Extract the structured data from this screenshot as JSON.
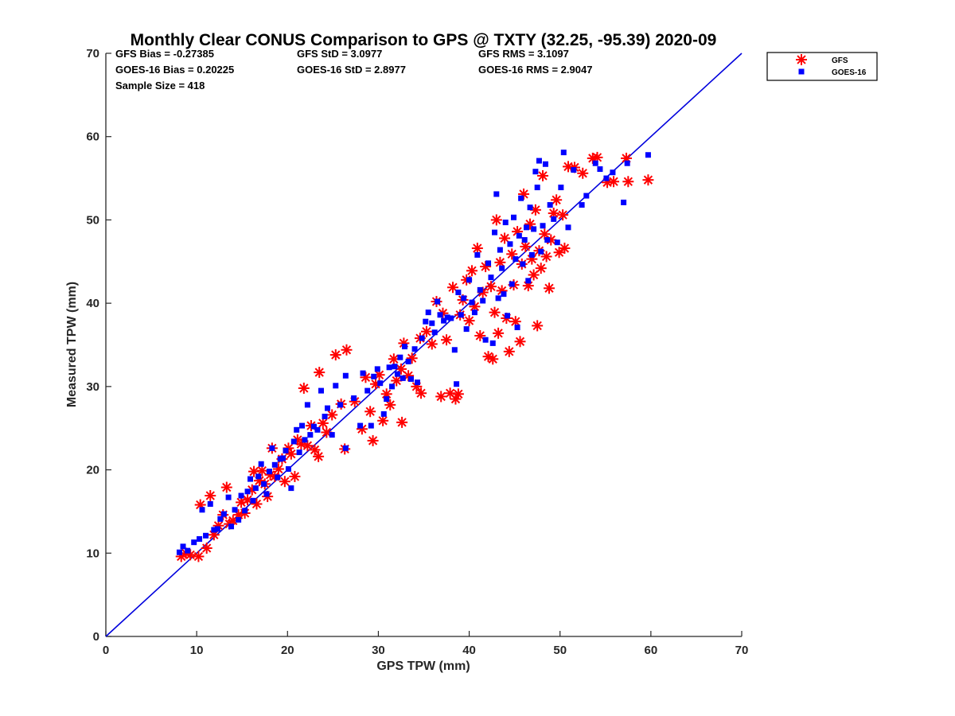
{
  "chart_data": {
    "type": "scatter",
    "title": "Monthly Clear CONUS Comparison to GPS @ TXTY (32.25, -95.39) 2020-09",
    "xlabel": "GPS TPW (mm)",
    "ylabel": "Measured TPW (mm)",
    "xlim": [
      0,
      70
    ],
    "ylim": [
      0,
      70
    ],
    "xticks": [
      "0",
      "10",
      "20",
      "30",
      "40",
      "50",
      "60",
      "70"
    ],
    "yticks": [
      "0",
      "10",
      "20",
      "30",
      "40",
      "50",
      "60",
      "70"
    ],
    "grid": false,
    "legend_position": "outside-top-right",
    "stats": {
      "gfs_bias": "GFS Bias = -0.27385",
      "goes_bias": "GOES-16 Bias = 0.20225",
      "sample_size": "Sample Size = 418",
      "gfs_std": "GFS StD = 3.0977",
      "goes_std": "GOES-16 StD = 2.8977",
      "gfs_rms": "GFS RMS = 3.1097",
      "goes_rms": "GOES-16 RMS = 2.9047"
    },
    "reference_line": {
      "x": [
        0,
        70
      ],
      "y": [
        0,
        70
      ],
      "color": "#0000dd"
    },
    "series": [
      {
        "name": "GFS",
        "marker": "asterisk",
        "color": "#ff0000",
        "points": [
          [
            8.3,
            9.6
          ],
          [
            8.8,
            10.0
          ],
          [
            9.3,
            9.8
          ],
          [
            10.2,
            9.6
          ],
          [
            10.4,
            15.8
          ],
          [
            11.1,
            10.6
          ],
          [
            11.5,
            16.9
          ],
          [
            11.9,
            12.2
          ],
          [
            12.4,
            13.3
          ],
          [
            12.9,
            14.6
          ],
          [
            13.3,
            17.9
          ],
          [
            13.6,
            13.5
          ],
          [
            14.0,
            13.9
          ],
          [
            14.6,
            14.6
          ],
          [
            14.9,
            16.1
          ],
          [
            15.3,
            14.8
          ],
          [
            15.6,
            16.4
          ],
          [
            16.1,
            17.6
          ],
          [
            16.3,
            19.8
          ],
          [
            16.6,
            15.9
          ],
          [
            16.9,
            18.7
          ],
          [
            17.2,
            19.9
          ],
          [
            17.5,
            18.3
          ],
          [
            17.8,
            16.8
          ],
          [
            18.1,
            19.4
          ],
          [
            18.3,
            22.6
          ],
          [
            18.6,
            19.2
          ],
          [
            19.0,
            20.1
          ],
          [
            19.4,
            21.3
          ],
          [
            19.7,
            18.6
          ],
          [
            20.1,
            22.6
          ],
          [
            20.4,
            21.9
          ],
          [
            20.8,
            19.2
          ],
          [
            21.1,
            23.6
          ],
          [
            21.5,
            23.1
          ],
          [
            21.8,
            29.8
          ],
          [
            22.2,
            22.9
          ],
          [
            22.6,
            25.3
          ],
          [
            23.0,
            22.4
          ],
          [
            23.4,
            21.6
          ],
          [
            23.5,
            31.7
          ],
          [
            23.9,
            25.6
          ],
          [
            24.3,
            24.5
          ],
          [
            24.9,
            26.6
          ],
          [
            25.3,
            33.8
          ],
          [
            25.9,
            27.9
          ],
          [
            26.3,
            22.5
          ],
          [
            26.5,
            34.4
          ],
          [
            27.4,
            28.2
          ],
          [
            28.2,
            24.9
          ],
          [
            28.6,
            31.1
          ],
          [
            29.1,
            27.0
          ],
          [
            29.4,
            23.5
          ],
          [
            29.7,
            30.3
          ],
          [
            30.1,
            31.4
          ],
          [
            30.5,
            25.9
          ],
          [
            30.9,
            29.1
          ],
          [
            31.3,
            27.8
          ],
          [
            31.7,
            33.3
          ],
          [
            32.0,
            30.7
          ],
          [
            32.5,
            32.1
          ],
          [
            32.6,
            25.7
          ],
          [
            32.8,
            35.2
          ],
          [
            33.3,
            31.3
          ],
          [
            33.7,
            33.4
          ],
          [
            34.2,
            30.0
          ],
          [
            34.6,
            35.8
          ],
          [
            34.7,
            29.2
          ],
          [
            35.3,
            36.6
          ],
          [
            35.9,
            35.1
          ],
          [
            36.4,
            40.2
          ],
          [
            36.9,
            28.8
          ],
          [
            37.1,
            38.8
          ],
          [
            37.5,
            35.6
          ],
          [
            37.9,
            29.2
          ],
          [
            38.2,
            41.9
          ],
          [
            38.5,
            28.5
          ],
          [
            38.8,
            29.1
          ],
          [
            39.0,
            38.6
          ],
          [
            39.3,
            40.4
          ],
          [
            39.7,
            42.8
          ],
          [
            40.0,
            37.9
          ],
          [
            40.3,
            43.9
          ],
          [
            40.6,
            39.6
          ],
          [
            40.9,
            46.6
          ],
          [
            41.2,
            36.1
          ],
          [
            41.5,
            41.3
          ],
          [
            41.8,
            44.4
          ],
          [
            42.1,
            33.6
          ],
          [
            42.4,
            42.0
          ],
          [
            42.6,
            33.3
          ],
          [
            42.8,
            38.9
          ],
          [
            43.0,
            50.0
          ],
          [
            43.2,
            36.4
          ],
          [
            43.4,
            44.9
          ],
          [
            43.6,
            41.5
          ],
          [
            43.9,
            47.8
          ],
          [
            44.1,
            38.2
          ],
          [
            44.4,
            34.2
          ],
          [
            44.7,
            45.9
          ],
          [
            44.9,
            42.2
          ],
          [
            45.1,
            37.8
          ],
          [
            45.3,
            48.6
          ],
          [
            45.6,
            35.4
          ],
          [
            45.8,
            44.7
          ],
          [
            46.0,
            53.1
          ],
          [
            46.2,
            46.8
          ],
          [
            46.5,
            42.1
          ],
          [
            46.7,
            49.5
          ],
          [
            46.9,
            45.3
          ],
          [
            47.1,
            43.4
          ],
          [
            47.3,
            51.2
          ],
          [
            47.5,
            37.3
          ],
          [
            47.7,
            46.3
          ],
          [
            47.9,
            44.2
          ],
          [
            48.1,
            55.3
          ],
          [
            48.3,
            48.3
          ],
          [
            48.5,
            45.6
          ],
          [
            48.8,
            41.8
          ],
          [
            49.0,
            47.6
          ],
          [
            49.3,
            50.8
          ],
          [
            49.6,
            52.4
          ],
          [
            49.9,
            46.1
          ],
          [
            50.3,
            50.6
          ],
          [
            50.5,
            46.6
          ],
          [
            50.9,
            56.4
          ],
          [
            51.6,
            56.3
          ],
          [
            52.5,
            55.6
          ],
          [
            53.6,
            57.4
          ],
          [
            54.1,
            57.5
          ],
          [
            55.2,
            54.5
          ],
          [
            55.9,
            54.6
          ],
          [
            57.3,
            57.4
          ],
          [
            57.5,
            54.6
          ],
          [
            59.7,
            54.8
          ]
        ]
      },
      {
        "name": "GOES-16",
        "marker": "square",
        "color": "#0000ff",
        "points": [
          [
            8.1,
            10.1
          ],
          [
            8.5,
            10.8
          ],
          [
            9.0,
            10.3
          ],
          [
            9.7,
            11.3
          ],
          [
            10.3,
            11.7
          ],
          [
            10.6,
            15.2
          ],
          [
            11.0,
            12.1
          ],
          [
            11.5,
            15.9
          ],
          [
            11.9,
            12.8
          ],
          [
            12.3,
            12.9
          ],
          [
            12.6,
            14.1
          ],
          [
            13.0,
            14.7
          ],
          [
            13.5,
            16.7
          ],
          [
            13.8,
            13.2
          ],
          [
            14.2,
            15.2
          ],
          [
            14.6,
            14.0
          ],
          [
            14.9,
            16.9
          ],
          [
            15.3,
            15.1
          ],
          [
            15.6,
            17.4
          ],
          [
            15.9,
            18.9
          ],
          [
            16.2,
            16.3
          ],
          [
            16.5,
            17.8
          ],
          [
            16.8,
            19.2
          ],
          [
            17.1,
            20.7
          ],
          [
            17.4,
            18.3
          ],
          [
            17.7,
            17.1
          ],
          [
            18.0,
            19.8
          ],
          [
            18.3,
            22.6
          ],
          [
            18.6,
            20.6
          ],
          [
            18.9,
            19.1
          ],
          [
            19.2,
            21.3
          ],
          [
            19.5,
            21.4
          ],
          [
            19.8,
            22.3
          ],
          [
            20.1,
            20.1
          ],
          [
            20.4,
            17.8
          ],
          [
            20.7,
            23.4
          ],
          [
            21.0,
            24.8
          ],
          [
            21.3,
            22.1
          ],
          [
            21.6,
            25.3
          ],
          [
            21.9,
            23.6
          ],
          [
            22.2,
            27.8
          ],
          [
            22.5,
            24.2
          ],
          [
            22.9,
            25.2
          ],
          [
            23.3,
            24.8
          ],
          [
            23.7,
            29.5
          ],
          [
            24.1,
            26.4
          ],
          [
            24.4,
            27.4
          ],
          [
            24.9,
            24.2
          ],
          [
            25.3,
            30.1
          ],
          [
            25.8,
            27.8
          ],
          [
            26.4,
            31.3
          ],
          [
            26.4,
            22.6
          ],
          [
            27.3,
            28.6
          ],
          [
            28.0,
            25.3
          ],
          [
            28.3,
            31.6
          ],
          [
            28.8,
            29.5
          ],
          [
            29.2,
            25.3
          ],
          [
            29.5,
            31.2
          ],
          [
            29.9,
            32.1
          ],
          [
            30.2,
            30.4
          ],
          [
            30.6,
            26.7
          ],
          [
            30.9,
            28.5
          ],
          [
            31.2,
            32.3
          ],
          [
            31.5,
            30.0
          ],
          [
            31.8,
            32.4
          ],
          [
            32.1,
            31.5
          ],
          [
            32.4,
            33.5
          ],
          [
            32.7,
            31.0
          ],
          [
            32.9,
            34.8
          ],
          [
            33.3,
            33.0
          ],
          [
            33.6,
            30.9
          ],
          [
            34.0,
            34.5
          ],
          [
            34.3,
            30.5
          ],
          [
            34.8,
            35.8
          ],
          [
            35.2,
            37.8
          ],
          [
            35.5,
            38.9
          ],
          [
            35.9,
            37.6
          ],
          [
            36.2,
            36.5
          ],
          [
            36.5,
            40.2
          ],
          [
            36.8,
            38.6
          ],
          [
            37.2,
            37.9
          ],
          [
            37.6,
            38.3
          ],
          [
            38.0,
            38.2
          ],
          [
            38.4,
            34.4
          ],
          [
            38.6,
            30.3
          ],
          [
            38.8,
            41.3
          ],
          [
            39.1,
            38.6
          ],
          [
            39.4,
            40.6
          ],
          [
            39.7,
            36.9
          ],
          [
            40.0,
            42.8
          ],
          [
            40.3,
            40.1
          ],
          [
            40.6,
            38.9
          ],
          [
            40.9,
            45.8
          ],
          [
            41.2,
            41.6
          ],
          [
            41.5,
            40.3
          ],
          [
            41.8,
            35.6
          ],
          [
            42.1,
            44.8
          ],
          [
            42.4,
            43.1
          ],
          [
            42.6,
            35.2
          ],
          [
            42.8,
            48.5
          ],
          [
            43.0,
            53.1
          ],
          [
            43.2,
            40.6
          ],
          [
            43.4,
            46.4
          ],
          [
            43.6,
            44.2
          ],
          [
            43.8,
            41.1
          ],
          [
            44.0,
            49.7
          ],
          [
            44.2,
            38.5
          ],
          [
            44.5,
            47.1
          ],
          [
            44.7,
            42.3
          ],
          [
            44.9,
            50.3
          ],
          [
            45.1,
            45.3
          ],
          [
            45.3,
            37.1
          ],
          [
            45.5,
            48.1
          ],
          [
            45.7,
            52.6
          ],
          [
            45.9,
            44.7
          ],
          [
            46.1,
            47.6
          ],
          [
            46.3,
            49.1
          ],
          [
            46.5,
            42.7
          ],
          [
            46.7,
            51.5
          ],
          [
            46.9,
            45.8
          ],
          [
            47.1,
            48.9
          ],
          [
            47.3,
            55.8
          ],
          [
            47.5,
            53.9
          ],
          [
            47.7,
            57.1
          ],
          [
            47.9,
            46.2
          ],
          [
            48.1,
            49.3
          ],
          [
            48.4,
            56.7
          ],
          [
            48.6,
            47.6
          ],
          [
            48.9,
            51.8
          ],
          [
            49.3,
            50.1
          ],
          [
            49.7,
            47.3
          ],
          [
            50.1,
            53.9
          ],
          [
            50.4,
            58.1
          ],
          [
            50.9,
            49.1
          ],
          [
            51.5,
            56.0
          ],
          [
            52.4,
            51.8
          ],
          [
            52.9,
            52.9
          ],
          [
            53.9,
            56.8
          ],
          [
            54.4,
            56.1
          ],
          [
            55.1,
            55.0
          ],
          [
            55.8,
            55.7
          ],
          [
            57.0,
            52.1
          ],
          [
            57.4,
            56.8
          ],
          [
            59.7,
            57.8
          ]
        ]
      }
    ]
  }
}
